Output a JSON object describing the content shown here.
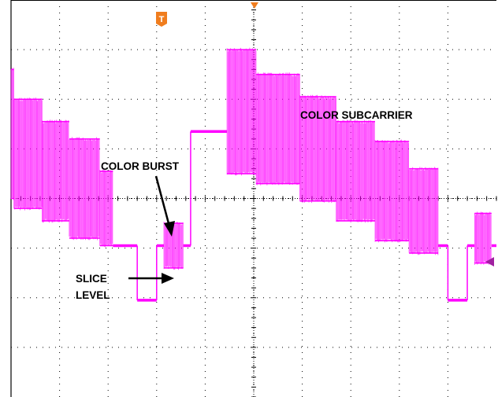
{
  "screen": {
    "background": "#ffffff",
    "grid_color": "#000000",
    "trace_color": "#ff00ff",
    "marker_color": "#f07d1e",
    "level_marker_color": "#a020a0",
    "trigger_marker_label": "T"
  },
  "annotations": {
    "color_subcarrier": "COLOR SUBCARRIER",
    "color_burst": "COLOR BURST",
    "slice_level_line1": "SLICE",
    "slice_level_line2": "LEVEL"
  },
  "chart_data": {
    "type": "line",
    "title": "",
    "xlabel": "",
    "ylabel": "",
    "grid": true,
    "xlim": [
      0,
      10
    ],
    "ylim": [
      -4,
      4
    ],
    "x_divisions": 10,
    "y_divisions": 8,
    "series": [
      {
        "segments": [
          {
            "kind": "burst",
            "x": [
              0.0,
              0.06
            ],
            "center": 1.3,
            "amp": 1.3
          },
          {
            "kind": "burst",
            "x": [
              0.06,
              0.64
            ],
            "center": 0.9,
            "amp": 1.1
          },
          {
            "kind": "burst",
            "x": [
              0.64,
              1.2
            ],
            "center": 0.55,
            "amp": 1.0
          },
          {
            "kind": "burst",
            "x": [
              1.2,
              1.83
            ],
            "center": 0.2,
            "amp": 1.0
          },
          {
            "kind": "burst",
            "x": [
              1.83,
              2.1
            ],
            "center": -0.2,
            "amp": 0.75
          },
          {
            "kind": "flat",
            "x": [
              2.1,
              2.6
            ],
            "y": -0.95
          },
          {
            "kind": "step",
            "x": 2.6,
            "y": [
              -0.95,
              -2.05
            ]
          },
          {
            "kind": "flat",
            "x": [
              2.6,
              3.0
            ],
            "y": -2.05
          },
          {
            "kind": "step",
            "x": 3.0,
            "y": [
              -2.05,
              -0.95
            ]
          },
          {
            "kind": "flat",
            "x": [
              3.0,
              3.15
            ],
            "y": -0.95
          },
          {
            "kind": "burst",
            "x": [
              3.15,
              3.55
            ],
            "center": -0.95,
            "amp": 0.45
          },
          {
            "kind": "flat",
            "x": [
              3.55,
              3.7
            ],
            "y": -0.95
          },
          {
            "kind": "step",
            "x": 3.7,
            "y": [
              -0.95,
              1.35
            ]
          },
          {
            "kind": "flat",
            "x": [
              3.7,
              4.45
            ],
            "y": 1.35
          },
          {
            "kind": "burst",
            "x": [
              4.45,
              5.05
            ],
            "center": 1.75,
            "amp": 1.25
          },
          {
            "kind": "burst",
            "x": [
              5.05,
              5.95
            ],
            "center": 1.4,
            "amp": 1.1
          },
          {
            "kind": "burst",
            "x": [
              5.95,
              6.7
            ],
            "center": 1.0,
            "amp": 1.05
          },
          {
            "kind": "burst",
            "x": [
              6.7,
              7.5
            ],
            "center": 0.55,
            "amp": 1.0
          },
          {
            "kind": "burst",
            "x": [
              7.5,
              8.2
            ],
            "center": 0.15,
            "amp": 1.0
          },
          {
            "kind": "burst",
            "x": [
              8.2,
              8.8
            ],
            "center": -0.25,
            "amp": 0.85
          },
          {
            "kind": "flat",
            "x": [
              8.8,
              9.0
            ],
            "y": -0.95
          },
          {
            "kind": "step",
            "x": 9.0,
            "y": [
              -0.95,
              -2.05
            ]
          },
          {
            "kind": "flat",
            "x": [
              9.0,
              9.4
            ],
            "y": -2.05
          },
          {
            "kind": "step",
            "x": 9.4,
            "y": [
              -2.05,
              -0.95
            ]
          },
          {
            "kind": "flat",
            "x": [
              9.4,
              9.55
            ],
            "y": -0.95
          },
          {
            "kind": "burst",
            "x": [
              9.55,
              9.9
            ],
            "center": -0.8,
            "amp": 0.5
          },
          {
            "kind": "flat",
            "x": [
              9.9,
              10.0
            ],
            "y": -0.95
          }
        ]
      }
    ]
  }
}
